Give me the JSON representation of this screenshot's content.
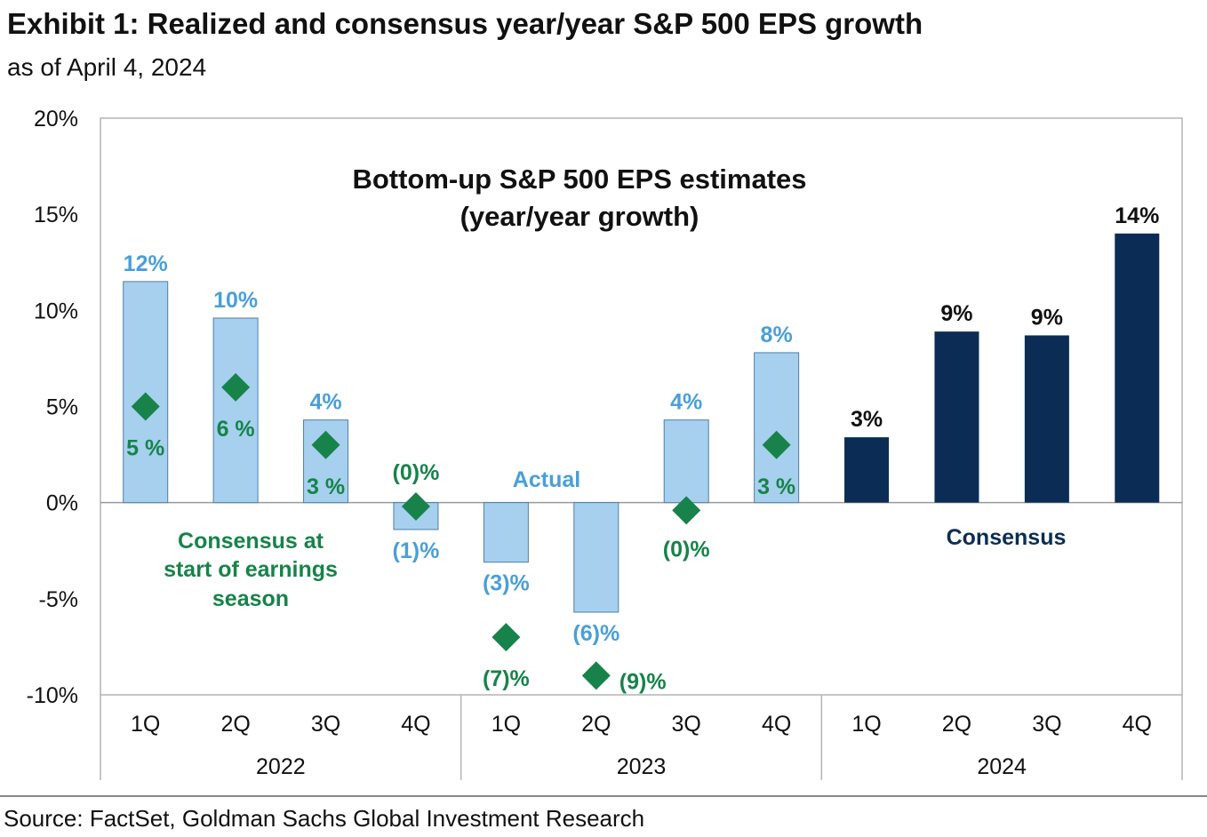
{
  "title": "Exhibit 1: Realized and consensus year/year S&P 500 EPS growth",
  "subtitle": "as of April 4, 2024",
  "source": "Source: FactSet, Goldman Sachs Global Investment Research",
  "chart_data": {
    "type": "bar",
    "title": "Bottom-up S&P 500 EPS estimates",
    "title_line2": "(year/year growth)",
    "ylim": [
      -10,
      20
    ],
    "yticks": [
      20,
      15,
      10,
      5,
      0,
      -5,
      -10
    ],
    "ytick_labels": [
      "20%",
      "15%",
      "10%",
      "5%",
      "0%",
      "-5%",
      "-10%"
    ],
    "quarters": [
      "1Q",
      "2Q",
      "3Q",
      "4Q",
      "1Q",
      "2Q",
      "3Q",
      "4Q",
      "1Q",
      "2Q",
      "3Q",
      "4Q"
    ],
    "years": [
      "2022",
      "2023",
      "2024"
    ],
    "series": [
      {
        "name": "Actual",
        "color": "#a6d0ee",
        "label_color": "#4a9fd8",
        "values": [
          11.5,
          9.6,
          4.3,
          -1.4,
          -3.1,
          -5.7,
          4.3,
          7.8,
          null,
          null,
          null,
          null
        ],
        "labels": [
          "12%",
          "10%",
          "4%",
          "(1)%",
          "(3)%",
          "(6)%",
          "4%",
          "8%",
          null,
          null,
          null,
          null
        ]
      },
      {
        "name": "Consensus",
        "color": "#0b2d55",
        "label_color": "#111111",
        "values": [
          null,
          null,
          null,
          null,
          null,
          null,
          null,
          null,
          3.4,
          8.9,
          8.7,
          14.0
        ],
        "labels": [
          null,
          null,
          null,
          null,
          null,
          null,
          null,
          null,
          "3%",
          "9%",
          "9%",
          "14%"
        ]
      },
      {
        "name": "Consensus at start of earnings season",
        "color": "#17834a",
        "values": [
          5,
          6,
          3,
          -0.2,
          -7,
          -9,
          -0.4,
          3,
          null,
          null,
          null,
          null
        ],
        "labels": [
          "5 %",
          "6 %",
          "3 %",
          "(0)%",
          "(7)%",
          "(9)%",
          "(0)%",
          "3 %",
          null,
          null,
          null,
          null
        ]
      }
    ],
    "annotations": {
      "actual": "Actual",
      "consensus": "Consensus",
      "start_line1": "Consensus at",
      "start_line2": "start of earnings",
      "start_line3": "season"
    }
  }
}
